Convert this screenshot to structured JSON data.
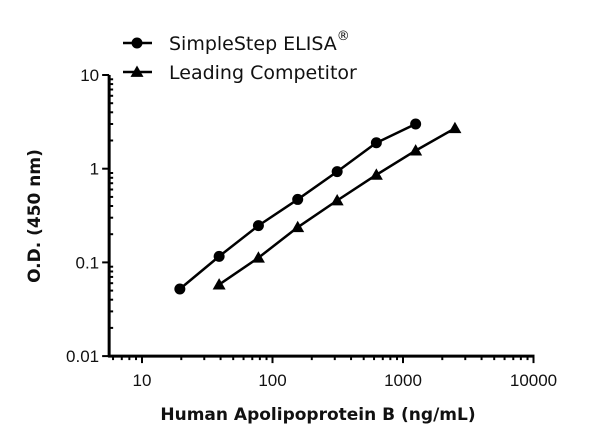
{
  "chart_data": {
    "type": "line",
    "title": "",
    "xlabel": "Human Apolipoprotein B (ng/mL)",
    "ylabel": "O.D. (450 nm)",
    "xscale": "log",
    "yscale": "log",
    "xlim": [
      5.6,
      10000
    ],
    "ylim": [
      0.01,
      10
    ],
    "xticks": [
      10,
      100,
      1000,
      10000
    ],
    "xtick_labels": [
      "10",
      "100",
      "1000",
      "10000"
    ],
    "yticks": [
      0.01,
      0.1,
      1,
      10
    ],
    "ytick_labels": [
      "0.01",
      "0.1",
      "1",
      "10"
    ],
    "grid": false,
    "legend_position": "top-left, above plot",
    "series": [
      {
        "name": "SimpleStep ELISA®",
        "marker": "circle",
        "color": "#000000",
        "x": [
          19.5,
          39,
          78,
          156,
          313,
          625,
          1250
        ],
        "y": [
          0.052,
          0.116,
          0.247,
          0.47,
          0.93,
          1.89,
          3.0
        ]
      },
      {
        "name": "Leading Competitor",
        "marker": "triangle",
        "color": "#000000",
        "x": [
          39,
          78,
          156,
          313,
          625,
          1250,
          2500
        ],
        "y": [
          0.058,
          0.112,
          0.237,
          0.458,
          0.86,
          1.56,
          2.7
        ]
      }
    ]
  },
  "legend": {
    "items": [
      {
        "label": "SimpleStep ELISA",
        "superscript": "®",
        "marker": "circle"
      },
      {
        "label": "Leading Competitor",
        "superscript": "",
        "marker": "triangle"
      }
    ]
  },
  "axes": {
    "x_title": "Human Apolipoprotein B (ng/mL)",
    "y_title": "O.D. (450 nm)"
  }
}
